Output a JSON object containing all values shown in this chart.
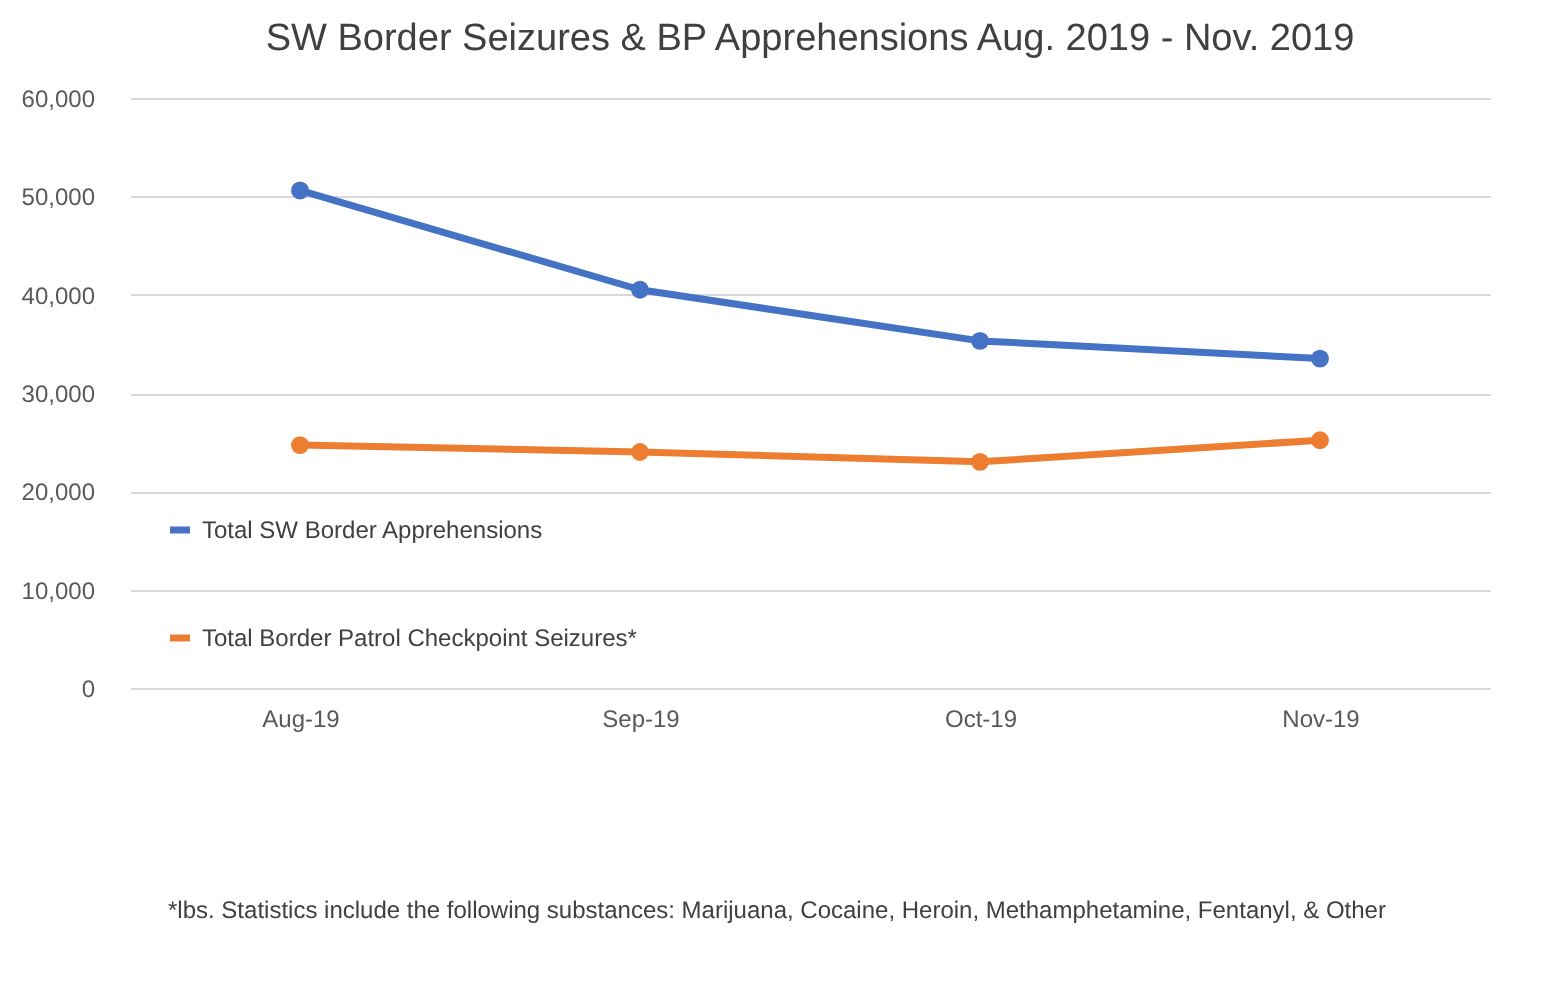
{
  "chart_data": {
    "type": "line",
    "title": "SW Border Seizures & BP Apprehensions Aug. 2019 - Nov. 2019",
    "categories": [
      "Aug-19",
      "Sep-19",
      "Oct-19",
      "Nov-19"
    ],
    "series": [
      {
        "name": "Total SW Border Apprehensions",
        "color": "#4472c4",
        "values": [
          50600,
          40500,
          35300,
          33500
        ]
      },
      {
        "name": "Total Border Patrol Checkpoint Seizures*",
        "color": "#ed7d31",
        "values": [
          24700,
          24000,
          23000,
          25200
        ]
      }
    ],
    "ylim": [
      0,
      60000
    ],
    "yticks": [
      {
        "value": 0,
        "label": "0"
      },
      {
        "value": 10000,
        "label": "10,000"
      },
      {
        "value": 20000,
        "label": "20,000"
      },
      {
        "value": 30000,
        "label": "30,000"
      },
      {
        "value": 40000,
        "label": "40,000"
      },
      {
        "value": 50000,
        "label": "50,000"
      },
      {
        "value": 60000,
        "label": "60,000"
      }
    ],
    "grid": "y",
    "marker": "circle",
    "line_style": "solid",
    "legend": "bottom",
    "annotations": [
      "*lbs. Statistics include the following substances: Marijuana, Cocaine, Heroin, Methamphetamine, Fentanyl, & Other"
    ]
  }
}
